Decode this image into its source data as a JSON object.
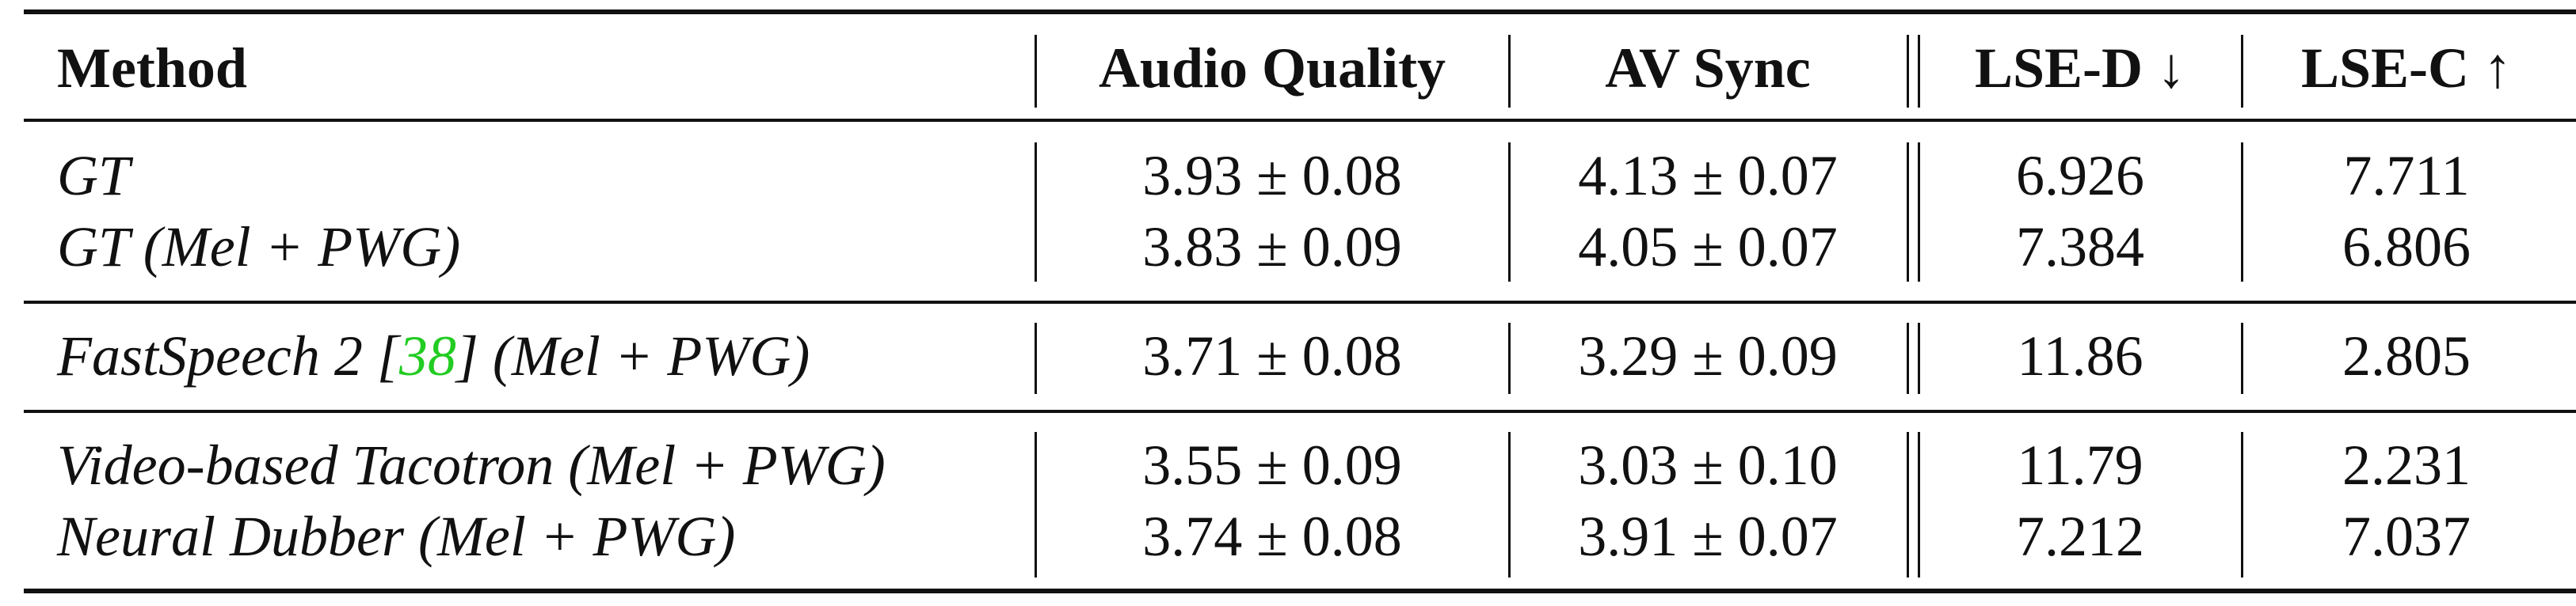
{
  "header": {
    "method": "Method",
    "audio_quality": "Audio Quality",
    "av_sync": "AV Sync",
    "lse_d": "LSE-D ↓",
    "lse_c": "LSE-C ↑"
  },
  "rows": [
    {
      "method": "GT",
      "audio_quality": "3.93 ± 0.08",
      "av_sync": "4.13 ± 0.07",
      "lse_d": "6.926",
      "lse_c": "7.711"
    },
    {
      "method": "GT (Mel + PWG)",
      "audio_quality": "3.83 ± 0.09",
      "av_sync": "4.05 ± 0.07",
      "lse_d": "7.384",
      "lse_c": "6.806"
    },
    {
      "method_pre": "FastSpeech 2 [",
      "method_cite": "38",
      "method_post": "] (Mel + PWG)",
      "audio_quality": "3.71 ± 0.08",
      "av_sync": "3.29 ± 0.09",
      "lse_d": "11.86",
      "lse_c": "2.805"
    },
    {
      "method": "Video-based Tacotron (Mel + PWG)",
      "audio_quality": "3.55 ± 0.09",
      "av_sync": "3.03 ± 0.10",
      "lse_d": "11.79",
      "lse_c": "2.231"
    },
    {
      "method": "Neural Dubber (Mel + PWG)",
      "audio_quality": "3.74 ± 0.08",
      "av_sync": "3.91 ± 0.07",
      "lse_d": "7.212",
      "lse_c": "7.037"
    }
  ]
}
